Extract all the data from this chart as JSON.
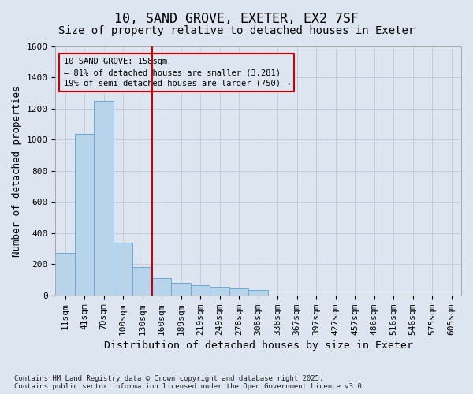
{
  "title": "10, SAND GROVE, EXETER, EX2 7SF",
  "subtitle": "Size of property relative to detached houses in Exeter",
  "xlabel": "Distribution of detached houses by size in Exeter",
  "ylabel": "Number of detached properties",
  "bins": [
    "11sqm",
    "41sqm",
    "70sqm",
    "100sqm",
    "130sqm",
    "160sqm",
    "189sqm",
    "219sqm",
    "249sqm",
    "278sqm",
    "308sqm",
    "338sqm",
    "367sqm",
    "397sqm",
    "427sqm",
    "457sqm",
    "486sqm",
    "516sqm",
    "546sqm",
    "575sqm",
    "605sqm"
  ],
  "bar_values": [
    275,
    1040,
    1250,
    340,
    180,
    110,
    80,
    65,
    55,
    45,
    35,
    0,
    0,
    0,
    0,
    0,
    0,
    0,
    0,
    0,
    0
  ],
  "bar_color": "#b8d4ea",
  "bar_edge_color": "#6aaad4",
  "background_color": "#dde6f0",
  "grid_color": "#c0cad8",
  "vline_color": "#cc0000",
  "vline_pos": 4.5,
  "annotation_text": "10 SAND GROVE: 158sqm\n← 81% of detached houses are smaller (3,281)\n19% of semi-detached houses are larger (750) →",
  "annotation_box_facecolor": "#dde6f0",
  "annotation_box_edgecolor": "#cc0000",
  "ylim": [
    0,
    1600
  ],
  "yticks": [
    0,
    200,
    400,
    600,
    800,
    1000,
    1200,
    1400,
    1600
  ],
  "footnote": "Contains HM Land Registry data © Crown copyright and database right 2025.\nContains public sector information licensed under the Open Government Licence v3.0.",
  "title_fontsize": 12,
  "subtitle_fontsize": 10,
  "axis_label_fontsize": 9,
  "tick_fontsize": 8,
  "footnote_fontsize": 6.5
}
